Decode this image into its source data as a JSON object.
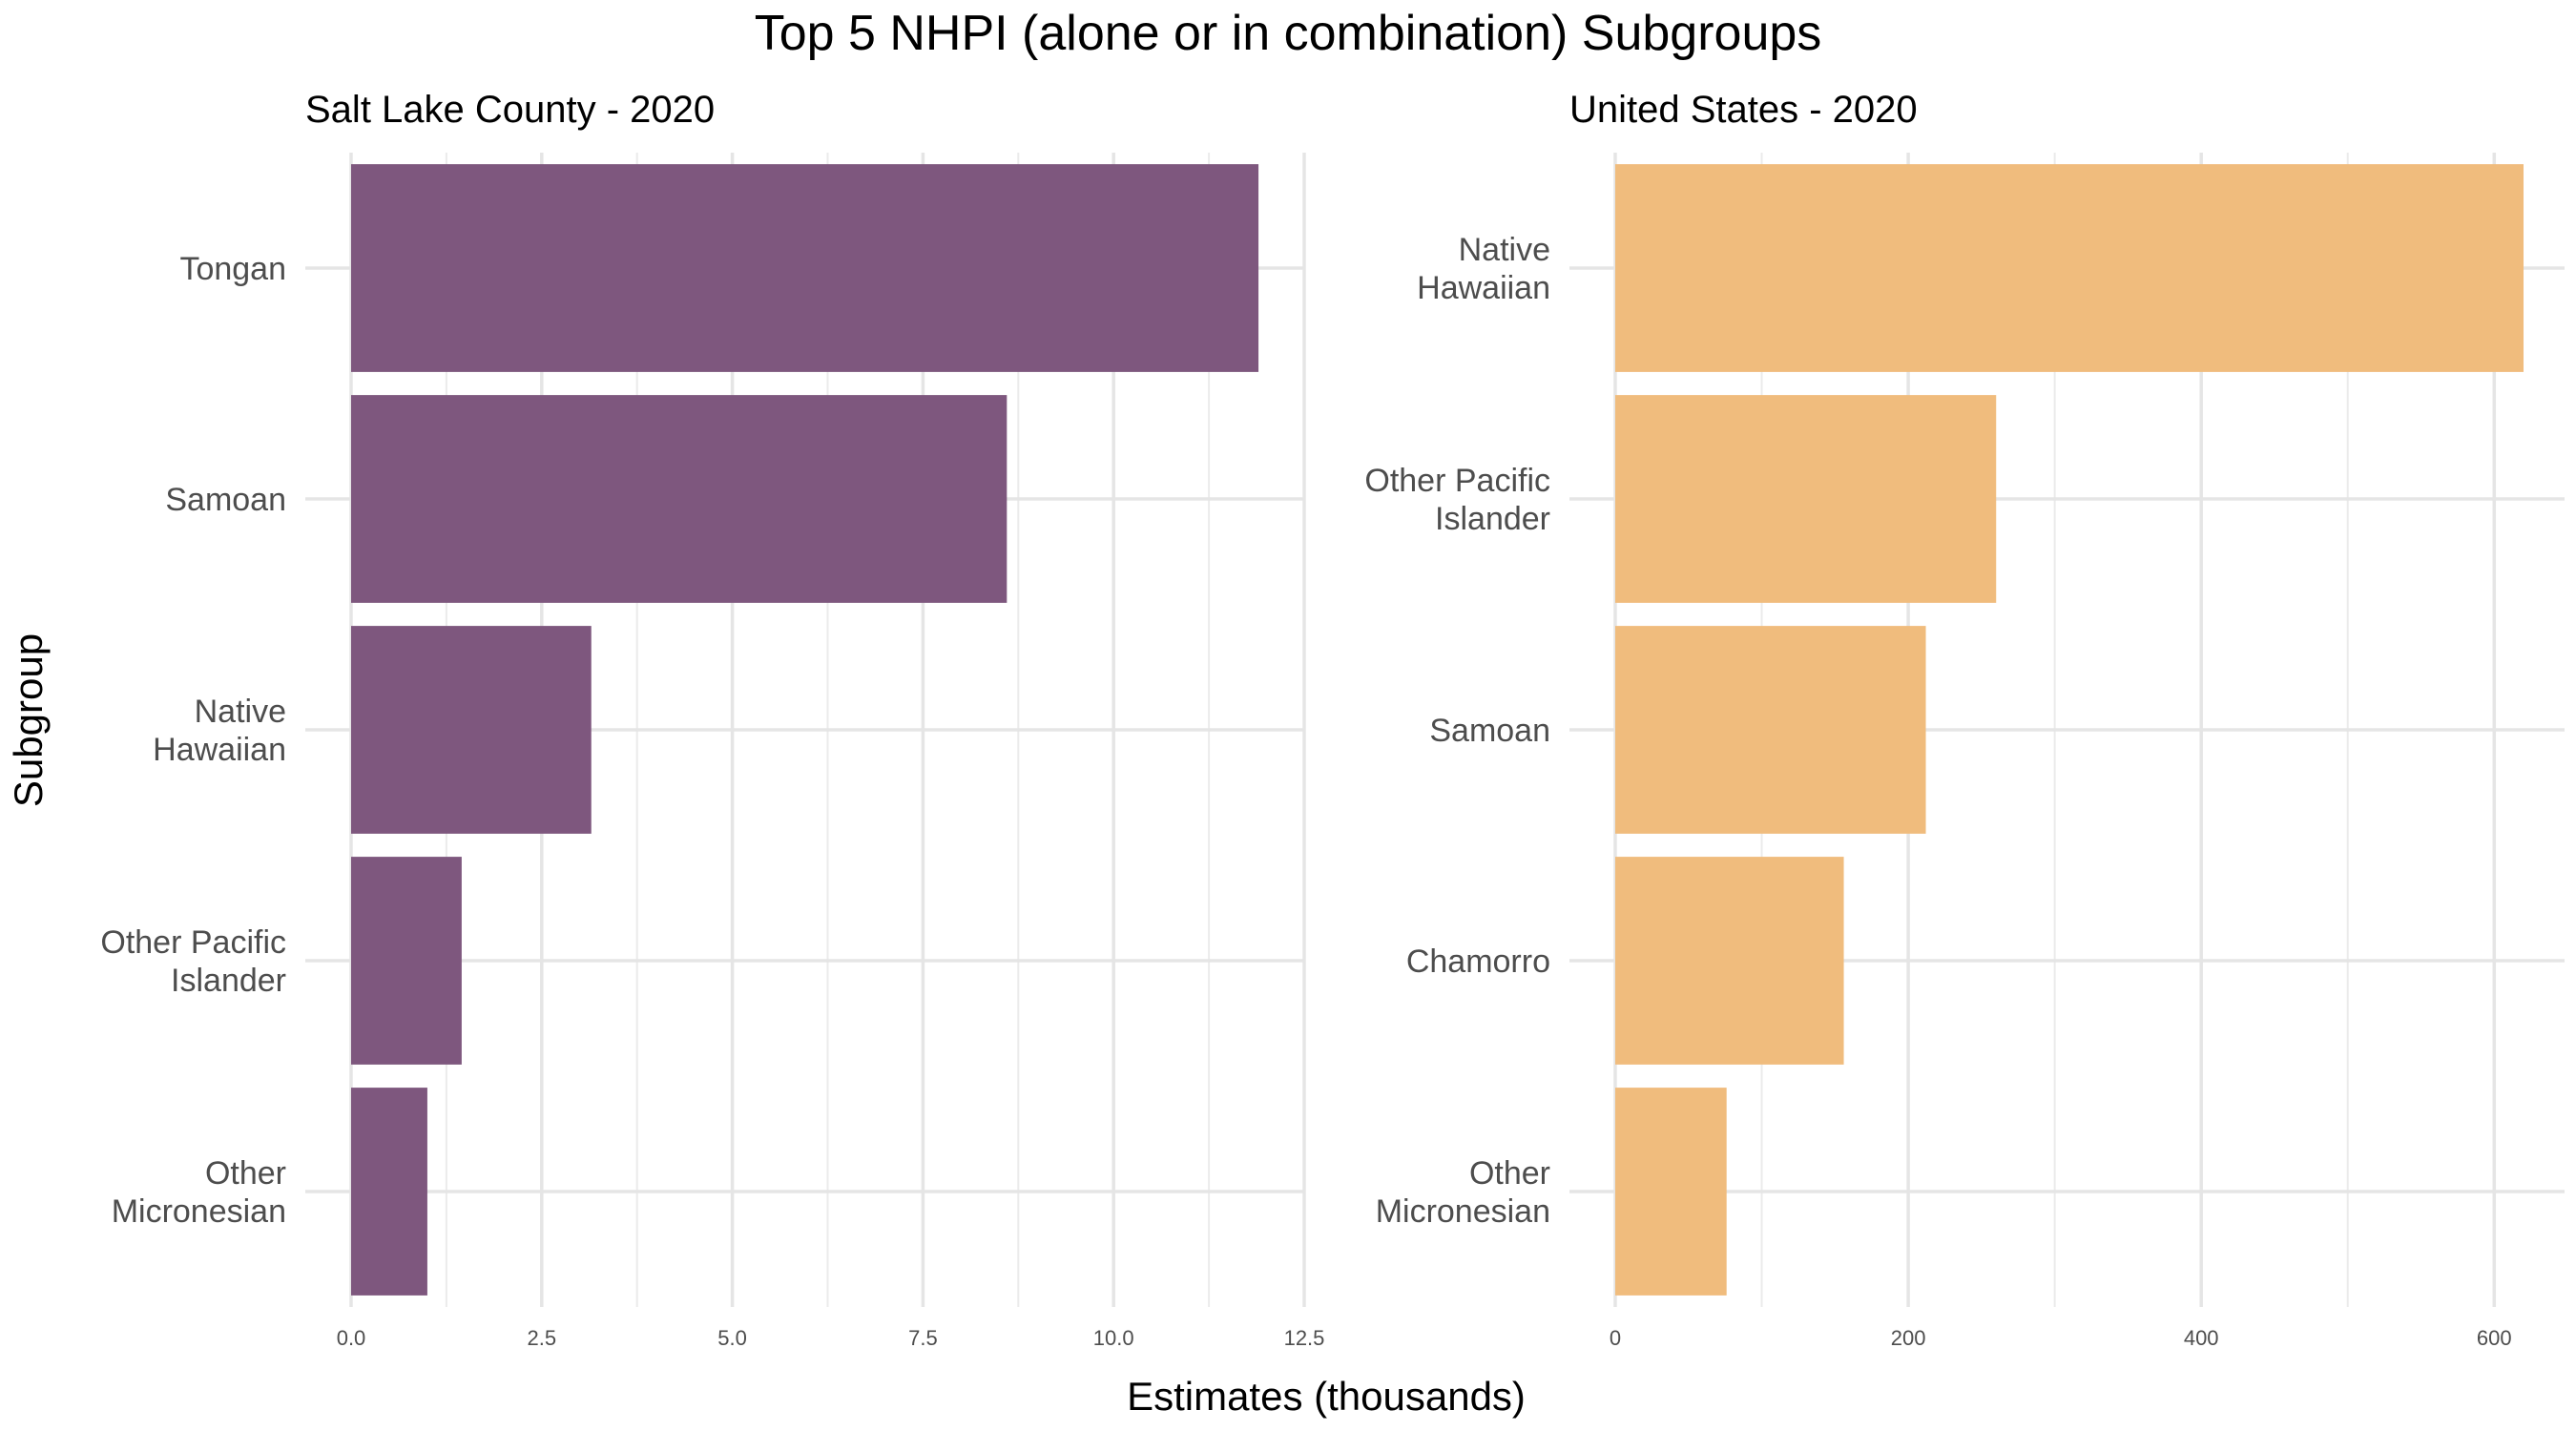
{
  "title": "Top 5 NHPI (alone or in combination) Subgroups",
  "y_axis_title": "Subgroup",
  "x_axis_title": "Estimates (thousands)",
  "chart_data": [
    {
      "type": "bar",
      "orientation": "horizontal",
      "title": "Salt Lake County - 2020",
      "xlabel": "Estimates (thousands)",
      "ylabel": "Subgroup",
      "color": "#7e577e",
      "categories": [
        [
          "Tongan"
        ],
        [
          "Samoan"
        ],
        [
          "Native",
          "Hawaiian"
        ],
        [
          "Other Pacific",
          "Islander"
        ],
        [
          "Other",
          "Micronesian"
        ]
      ],
      "values": [
        11.9,
        8.6,
        3.15,
        1.45,
        1.0
      ],
      "xlim": [
        0,
        12.5
      ],
      "ticks": [
        0,
        2.5,
        5,
        7.5,
        10,
        12.5
      ],
      "tick_labels": [
        "0.0",
        "2.5",
        "5.0",
        "7.5",
        "10.0",
        "12.5"
      ],
      "grid": true
    },
    {
      "type": "bar",
      "orientation": "horizontal",
      "title": "United States - 2020",
      "xlabel": "Estimates (thousands)",
      "ylabel": "Subgroup",
      "color": "#f0bc7d",
      "categories": [
        [
          "Native",
          "Hawaiian"
        ],
        [
          "Other Pacific",
          "Islander"
        ],
        [
          "Samoan"
        ],
        [
          "Chamorro"
        ],
        [
          "Other",
          "Micronesian"
        ]
      ],
      "values": [
        620,
        260,
        212,
        156,
        76
      ],
      "xlim": [
        0,
        648
      ],
      "ticks": [
        0,
        200,
        400,
        600
      ],
      "tick_labels": [
        "0",
        "200",
        "400",
        "600"
      ],
      "grid": true
    }
  ]
}
